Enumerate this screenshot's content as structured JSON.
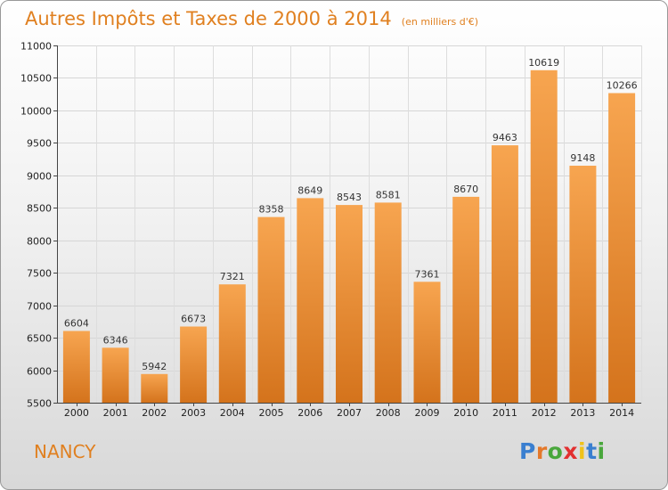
{
  "header": {
    "title": "Autres Impôts et Taxes de 2000 à 2014",
    "subtitle": "(en milliers d'€)"
  },
  "footer": {
    "city": "NANCY",
    "brand": "Proxiti"
  },
  "colors": {
    "accent": "#e08020",
    "bar_top": "#f7a550",
    "bar_bottom": "#d4731c",
    "brand_letters": [
      "#3a7fd0",
      "#e4782a",
      "#49a73c",
      "#e23030",
      "#f0c21a",
      "#3a7fd0",
      "#49a73c"
    ]
  },
  "chart_data": {
    "type": "bar",
    "title": "Autres Impôts et Taxes de 2000 à 2014",
    "subtitle": "(en milliers d'€)",
    "xlabel": "",
    "ylabel": "",
    "categories": [
      "2000",
      "2001",
      "2002",
      "2003",
      "2004",
      "2005",
      "2006",
      "2007",
      "2008",
      "2009",
      "2010",
      "2011",
      "2012",
      "2013",
      "2014"
    ],
    "values": [
      6604,
      6346,
      5942,
      6673,
      7321,
      8358,
      8649,
      8543,
      8581,
      7361,
      8670,
      9463,
      10619,
      9148,
      10266
    ],
    "ylim": [
      5500,
      11000
    ],
    "yticks": [
      5500,
      6000,
      6500,
      7000,
      7500,
      8000,
      8500,
      9000,
      9500,
      10000,
      10500,
      11000
    ],
    "grid": true,
    "legend": "none",
    "data_labels": true
  }
}
